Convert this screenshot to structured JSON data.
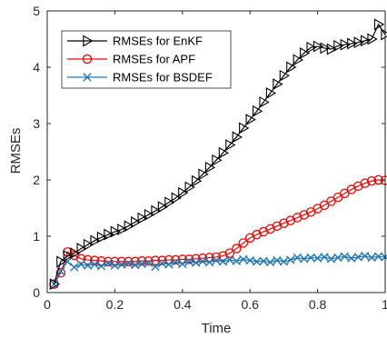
{
  "chart_data": {
    "type": "line",
    "title": "",
    "xlabel": "Time",
    "ylabel": "RMSEs",
    "xlim": [
      0,
      1
    ],
    "ylim": [
      0,
      5
    ],
    "xticks": [
      0,
      0.2,
      0.4,
      0.6,
      0.8,
      1
    ],
    "xtick_labels": [
      "0",
      "0.2",
      "0.4",
      "0.6",
      "0.8",
      "1"
    ],
    "yticks": [
      0,
      1,
      2,
      3,
      4,
      5
    ],
    "ytick_labels": [
      "0",
      "1",
      "2",
      "3",
      "4",
      "5"
    ],
    "grid": false,
    "legend_position": "top-left",
    "x": [
      0.02,
      0.04,
      0.06,
      0.08,
      0.1,
      0.12,
      0.14,
      0.16,
      0.18,
      0.2,
      0.22,
      0.24,
      0.26,
      0.28,
      0.3,
      0.32,
      0.34,
      0.36,
      0.38,
      0.4,
      0.42,
      0.44,
      0.46,
      0.48,
      0.5,
      0.52,
      0.54,
      0.56,
      0.58,
      0.6,
      0.62,
      0.64,
      0.66,
      0.68,
      0.7,
      0.72,
      0.74,
      0.76,
      0.78,
      0.8,
      0.82,
      0.84,
      0.86,
      0.88,
      0.9,
      0.92,
      0.94,
      0.96,
      0.98,
      1.0
    ],
    "series": [
      {
        "name": "RMSEs for EnKF",
        "color": "#000000",
        "marker": "triangle-right",
        "values": [
          0.15,
          0.55,
          0.65,
          0.7,
          0.78,
          0.85,
          0.92,
          0.98,
          1.03,
          1.08,
          1.12,
          1.18,
          1.25,
          1.32,
          1.38,
          1.45,
          1.52,
          1.6,
          1.68,
          1.77,
          1.87,
          1.98,
          2.1,
          2.22,
          2.35,
          2.48,
          2.62,
          2.76,
          2.92,
          3.07,
          3.22,
          3.38,
          3.54,
          3.7,
          3.85,
          4.0,
          4.13,
          4.25,
          4.35,
          4.37,
          4.34,
          4.32,
          4.38,
          4.4,
          4.42,
          4.44,
          4.47,
          4.5,
          4.76,
          4.58
        ]
      },
      {
        "name": "RMSEs for APF",
        "color": "#ff0000",
        "marker": "circle",
        "values": [
          0.15,
          0.35,
          0.72,
          0.66,
          0.6,
          0.58,
          0.57,
          0.56,
          0.55,
          0.55,
          0.55,
          0.55,
          0.55,
          0.56,
          0.56,
          0.57,
          0.57,
          0.58,
          0.58,
          0.59,
          0.59,
          0.6,
          0.61,
          0.62,
          0.63,
          0.65,
          0.7,
          0.78,
          0.88,
          0.97,
          1.03,
          1.08,
          1.13,
          1.18,
          1.23,
          1.28,
          1.33,
          1.38,
          1.43,
          1.49,
          1.55,
          1.62,
          1.69,
          1.76,
          1.83,
          1.89,
          1.94,
          1.98,
          2.0,
          1.99
        ]
      },
      {
        "name": "RMSEs for BSDEF",
        "color": "#1f77b4",
        "marker": "x",
        "values": [
          0.15,
          0.38,
          0.55,
          0.45,
          0.5,
          0.48,
          0.5,
          0.47,
          0.52,
          0.48,
          0.5,
          0.52,
          0.49,
          0.51,
          0.53,
          0.46,
          0.52,
          0.5,
          0.54,
          0.51,
          0.55,
          0.53,
          0.56,
          0.54,
          0.57,
          0.55,
          0.58,
          0.56,
          0.59,
          0.57,
          0.55,
          0.56,
          0.54,
          0.57,
          0.55,
          0.58,
          0.62,
          0.6,
          0.62,
          0.61,
          0.63,
          0.6,
          0.62,
          0.64,
          0.61,
          0.63,
          0.65,
          0.62,
          0.64,
          0.63
        ]
      }
    ]
  }
}
